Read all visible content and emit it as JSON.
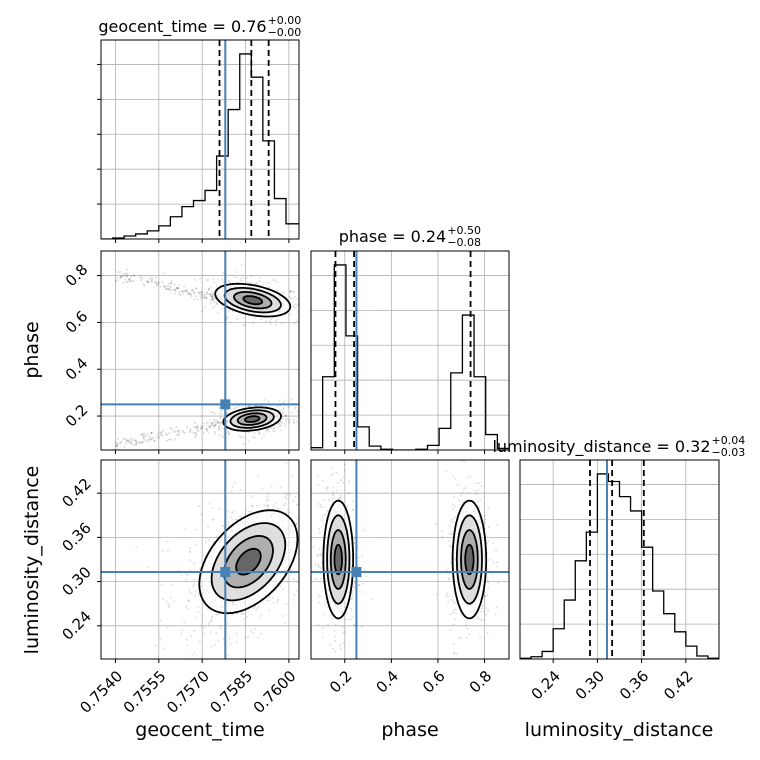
{
  "chart_data": {
    "type": "corner",
    "parameters": [
      "geocent_time",
      "phase",
      "luminosity_distance"
    ],
    "axis_labels": {
      "geocent_time": "geocent_time",
      "phase": "phase",
      "luminosity_distance": "luminosity_distance"
    },
    "titles": [
      {
        "param": "geocent_time",
        "text": "geocent_time = 0.76",
        "plus": "+0.00",
        "minus": "−0.00"
      },
      {
        "param": "phase",
        "text": "phase = 0.24",
        "plus": "+0.50",
        "minus": "−0.08"
      },
      {
        "param": "luminosity_distance",
        "text": "luminosity_distance = 0.32",
        "plus": "+0.04",
        "minus": "−0.03"
      }
    ],
    "ranges": {
      "geocent_time": [
        0.7535,
        0.76035
      ],
      "phase": [
        0.055,
        0.905
      ],
      "luminosity_distance": [
        0.195,
        0.465
      ]
    },
    "ticks": {
      "geocent_time": {
        "values": [
          0.754,
          0.7555,
          0.757,
          0.7585,
          0.76
        ],
        "labels": [
          "0.7540",
          "0.7555",
          "0.7570",
          "0.7585",
          "0.7600"
        ]
      },
      "phase": {
        "values": [
          0.2,
          0.4,
          0.6,
          0.8
        ],
        "labels": [
          "0.2",
          "0.4",
          "0.6",
          "0.8"
        ]
      },
      "luminosity_distance": {
        "values": [
          0.24,
          0.3,
          0.36,
          0.42
        ],
        "labels": [
          "0.24",
          "0.30",
          "0.36",
          "0.42"
        ]
      }
    },
    "truths": {
      "geocent_time": 0.7578,
      "phase": 0.25,
      "luminosity_distance": 0.313
    },
    "quantiles": {
      "geocent_time": [
        0.7576,
        0.7587,
        0.7593
      ],
      "phase": [
        0.16,
        0.24,
        0.74
      ],
      "luminosity_distance": [
        0.29,
        0.32,
        0.363
      ]
    },
    "histograms": {
      "geocent_time": {
        "bins": [
          0.7535,
          0.7539,
          0.7543,
          0.7547,
          0.7551,
          0.7555,
          0.7559,
          0.7563,
          0.7567,
          0.7571,
          0.7575,
          0.7579,
          0.7583,
          0.7587,
          0.7591,
          0.7595,
          0.7599,
          0.76035
        ],
        "counts": [
          0,
          1,
          3,
          5,
          8,
          13,
          22,
          32,
          38,
          48,
          82,
          128,
          183,
          160,
          97,
          40,
          15
        ]
      },
      "phase": {
        "bins": [
          0.055,
          0.105,
          0.155,
          0.205,
          0.255,
          0.305,
          0.355,
          0.405,
          0.455,
          0.505,
          0.555,
          0.605,
          0.655,
          0.705,
          0.755,
          0.805,
          0.855,
          0.905
        ],
        "counts": [
          3,
          95,
          240,
          148,
          30,
          5,
          1,
          0,
          0,
          1,
          6,
          28,
          100,
          175,
          95,
          20,
          2
        ]
      },
      "luminosity_distance": {
        "bins": [
          0.195,
          0.21,
          0.225,
          0.24,
          0.255,
          0.27,
          0.285,
          0.3,
          0.315,
          0.33,
          0.345,
          0.36,
          0.375,
          0.39,
          0.405,
          0.42,
          0.435,
          0.45,
          0.465
        ],
        "counts": [
          1,
          3,
          10,
          40,
          78,
          130,
          168,
          245,
          235,
          215,
          196,
          148,
          90,
          60,
          36,
          17,
          4,
          1
        ]
      }
    },
    "pairs": [
      {
        "x": "geocent_time",
        "y": "phase",
        "modes": [
          {
            "cx": 0.75875,
            "cy": 0.695,
            "sx": 0.00065,
            "sy": 0.035,
            "tilt": -0.4,
            "weight": 0.45,
            "tail": {
              "x0": 0.754,
              "y0": 0.8,
              "y1": 0.7
            }
          },
          {
            "cx": 0.75873,
            "cy": 0.187,
            "sx": 0.0005,
            "sy": 0.025,
            "tilt": 0.25,
            "weight": 0.55,
            "tail": {
              "x0": 0.754,
              "y0": 0.08,
              "y1": 0.17
            }
          }
        ]
      },
      {
        "x": "geocent_time",
        "y": "luminosity_distance",
        "modes": [
          {
            "cx": 0.7586,
            "cy": 0.327,
            "sx": 0.00085,
            "sy": 0.035,
            "tilt": 0.45,
            "weight": 1.0
          }
        ]
      },
      {
        "x": "phase",
        "y": "luminosity_distance",
        "modes": [
          {
            "cx": 0.172,
            "cy": 0.33,
            "sx": 0.032,
            "sy": 0.04,
            "tilt": 0.0,
            "weight": 0.55
          },
          {
            "cx": 0.735,
            "cy": 0.33,
            "sx": 0.036,
            "sy": 0.04,
            "tilt": 0.0,
            "weight": 0.45
          }
        ]
      }
    ],
    "contour_levels": [
      0.118,
      0.393,
      0.675,
      0.864
    ],
    "colors": {
      "truth": "#4682b4",
      "line": "#000000",
      "grid": "#b0b0b0",
      "points": "#000000"
    },
    "grid": true
  }
}
